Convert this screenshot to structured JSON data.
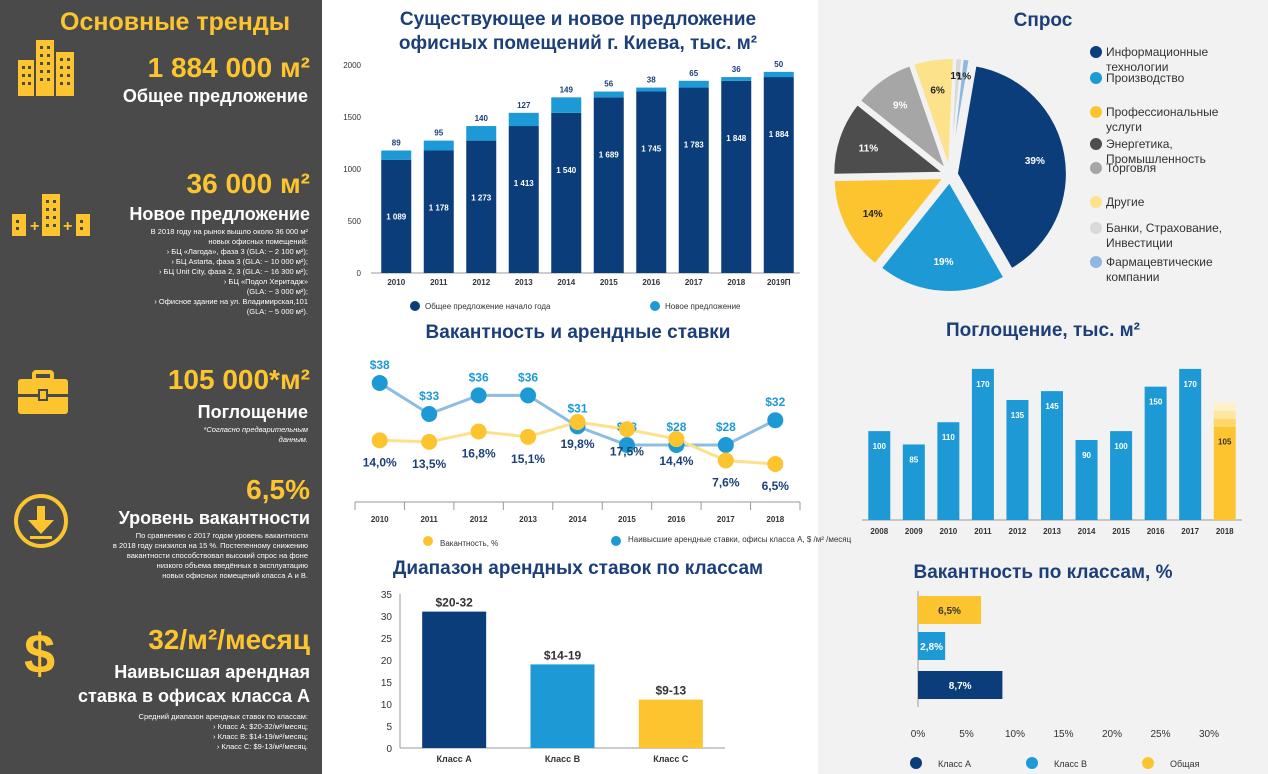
{
  "colors": {
    "dark_blue": "#0b3d7a",
    "blue": "#1d9ad6",
    "yellow": "#fcc52f",
    "gray_bg": "#4a4a4a",
    "title": "#1c3f78"
  },
  "left": {
    "title": "Основные тренды",
    "s1": {
      "icon": "buildings-icon",
      "value": "1 884 000 м²",
      "label": "Общее предложение"
    },
    "s2": {
      "icon": "new-buildings-icon",
      "value": "36 000 м²",
      "label": "Новое предложение",
      "notes": [
        "В 2018 году на рынок вышло около 36 000  м²",
        "новых офисных помещений:",
        "› БЦ «Лагода», фаза 3 (GLA: ~ 2 100 м²);",
        "› БЦ Astarta, фаза 3 (GLA: ~ 10 000 м²);",
        "› БЦ Unit City, фаза 2, 3 (GLA: ~ 16 300 м²);",
        "› БЦ «Подол Херитадж»",
        "(GLA: ~ 3 000 м²);",
        "› Офисное здание на ул. Владимирская,101",
        "(GLA: ~ 5 000 м²)."
      ]
    },
    "s3": {
      "icon": "briefcase-icon",
      "value": "105 000*м²",
      "label": "Поглощение",
      "notes": [
        "*Согласно предварительным",
        "данным."
      ]
    },
    "s4": {
      "icon": "arrow-down-icon",
      "value": "6,5%",
      "label": "Уровень вакантности",
      "notes": [
        "По сравнению с 2017 годом уровень вакантности",
        "в 2018 году снизился на 15 %. Постепенному снижению",
        "вакантности способствовал высокий спрос на фоне",
        "низкого объема введённых в эксплуатацию",
        "новых офисных помещений класса А и В."
      ]
    },
    "s5": {
      "icon": "dollar-icon",
      "value": "32/м²/месяц",
      "label1": "Наивысшая арендная",
      "label2": "ставка в офисах класса А",
      "notes": [
        "Средний диапазон арендных ставок по классам:",
        "› Класс А: $20-32/м²/месяц;",
        "› Класс В: $14-19/м²/месяц;",
        "› Класс С: $9-13/м²/месяц."
      ]
    }
  },
  "supply": {
    "title1": "Существующее и новое предложение",
    "title2": "офисных помещений г. Киева, тыс. м²"
  },
  "vacancy": {
    "title": "Вакантность и арендные ставки"
  },
  "rentrange": {
    "title": "Диапазон арендных ставок по классам"
  },
  "demand": {
    "title": "Спрос"
  },
  "absorption": {
    "title": "Поглощение, тыс. м²"
  },
  "vacclass": {
    "title": "Вакантность по классам, %"
  },
  "chart_data": [
    {
      "type": "bar",
      "id": "supply",
      "categories": [
        "2010",
        "2011",
        "2012",
        "2013",
        "2014",
        "2015",
        "2016",
        "2017",
        "2018",
        "2019П"
      ],
      "series": [
        {
          "name": "Общее предложение начало года",
          "values": [
            1089,
            1178,
            1273,
            1413,
            1540,
            1689,
            1745,
            1783,
            1848,
            1884
          ],
          "labels": [
            "1 089",
            "1 178",
            "1 273",
            "1 413",
            "1 540",
            "1 689",
            "1 745",
            "1 783",
            "1 848",
            "1 884"
          ]
        },
        {
          "name": "Новое предложение",
          "values": [
            89,
            95,
            140,
            127,
            149,
            56,
            38,
            65,
            36,
            50
          ]
        }
      ],
      "ylim": [
        0,
        2000
      ],
      "yticks": [
        "0",
        "500",
        "1000",
        "1500",
        "2000"
      ]
    },
    {
      "type": "line",
      "id": "vacancy",
      "categories": [
        "2010",
        "2011",
        "2012",
        "2013",
        "2014",
        "2015",
        "2016",
        "2017",
        "2018"
      ],
      "series": [
        {
          "name": "Наивысшие арендные ставки, офисы класса А, $ /м² /месяц",
          "values": [
            38,
            33,
            36,
            36,
            31,
            28,
            28,
            28,
            32
          ],
          "labels": [
            "$38",
            "$33",
            "$36",
            "$36",
            "$31",
            "$28",
            "$28",
            "$28",
            "$32"
          ]
        },
        {
          "name": "Вакантность, %",
          "values": [
            14.0,
            13.5,
            16.8,
            15.1,
            19.8,
            17.5,
            14.4,
            7.6,
            6.5
          ],
          "labels": [
            "14,0%",
            "13,5%",
            "16,8%",
            "15,1%",
            "19,8%",
            "17,5%",
            "14,4%",
            "7,6%",
            "6,5%"
          ]
        }
      ]
    },
    {
      "type": "bar",
      "id": "rentrange",
      "categories": [
        "Класс А",
        "Класс В",
        "Класс С"
      ],
      "values": [
        31,
        19,
        11
      ],
      "labels": [
        "$20-32",
        "$14-19",
        "$9-13"
      ],
      "ylim": [
        0,
        35
      ],
      "yticks": [
        "0",
        "5",
        "10",
        "15",
        "20",
        "25",
        "30",
        "35"
      ]
    },
    {
      "type": "pie",
      "id": "demand",
      "slices": [
        {
          "name": "Информационные технологии",
          "value": 39,
          "label": "39%",
          "color": "#0b3d7a"
        },
        {
          "name": "Производство",
          "value": 19,
          "label": "19%",
          "color": "#1d9ad6"
        },
        {
          "name": "Профессиональные услуги",
          "value": 14,
          "label": "14%",
          "color": "#fcc52f"
        },
        {
          "name": "Энергетика, Промышленность",
          "value": 11,
          "label": "11%",
          "color": "#4d4d4d"
        },
        {
          "name": "Торговля",
          "value": 9,
          "label": "9%",
          "color": "#a6a6a6"
        },
        {
          "name": "Другие",
          "value": 6,
          "label": "6%",
          "color": "#fde28c"
        },
        {
          "name": "Банки, Страхование, Инвестиции",
          "value": 1,
          "label": "1%",
          "color": "#d9d9d9"
        },
        {
          "name": "Фармацевтические компании",
          "value": 1,
          "label": "1%",
          "color": "#8fb8e0"
        }
      ],
      "legend": [
        [
          "Информационные",
          "технологии"
        ],
        [
          "Производство"
        ],
        [
          "Профессиональные",
          "услуги"
        ],
        [
          "Энергетика,",
          "Промышленность"
        ],
        [
          "Торговля"
        ],
        [
          "Другие"
        ],
        [
          "Банки, Страхование,",
          "Инвестиции"
        ],
        [
          "Фармацевтические",
          "компании"
        ]
      ]
    },
    {
      "type": "bar",
      "id": "absorption",
      "categories": [
        "2008",
        "2009",
        "2010",
        "2011",
        "2012",
        "2013",
        "2014",
        "2015",
        "2016",
        "2017",
        "2018"
      ],
      "values": [
        100,
        85,
        110,
        170,
        135,
        145,
        90,
        100,
        150,
        170,
        105
      ],
      "labels": [
        "100",
        "85",
        "110",
        "170",
        "135",
        "145",
        "90",
        "100",
        "150",
        "170",
        "105"
      ],
      "ylim": [
        0,
        180
      ]
    },
    {
      "type": "bar",
      "id": "vacclass",
      "orientation": "horizontal",
      "categories": [
        "Общая",
        "Класс В",
        "Класс А"
      ],
      "values": [
        6.5,
        2.8,
        8.7
      ],
      "labels": [
        "6,5%",
        "2,8%",
        "8,7%"
      ],
      "xlim": [
        0,
        30
      ],
      "xticks": [
        "0%",
        "5%",
        "10%",
        "15%",
        "20%",
        "25%",
        "30%"
      ],
      "legend": [
        "Класс А",
        "Класс В",
        "Общая"
      ]
    }
  ]
}
